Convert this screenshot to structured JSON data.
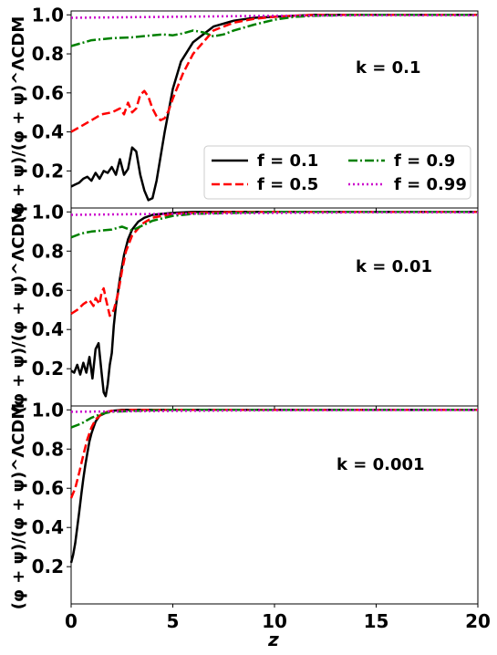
{
  "chart_data": [
    {
      "type": "line",
      "panel": "top",
      "annotation": "k = 0.1",
      "ylabel": "(φ + ψ)/(φ + ψ)^ΛCDM",
      "xlabel": "",
      "xlim": [
        0,
        20
      ],
      "ylim": [
        0.01,
        1.02
      ],
      "yticks": [
        "0.2",
        "0.4",
        "0.6",
        "0.8",
        "1.0"
      ],
      "legend_position": "lower-right",
      "series": [
        {
          "name": "f = 0.1",
          "color": "#000000",
          "style": "solid",
          "x": [
            0,
            0.2,
            0.4,
            0.6,
            0.8,
            1.0,
            1.1,
            1.2,
            1.4,
            1.6,
            1.8,
            2.0,
            2.2,
            2.4,
            2.6,
            2.8,
            3.0,
            3.2,
            3.4,
            3.6,
            3.8,
            4.0,
            4.2,
            4.6,
            5.0,
            5.4,
            6.0,
            7.0,
            8.0,
            9.0,
            10,
            11,
            12,
            14,
            16,
            18,
            20
          ],
          "y": [
            0.12,
            0.13,
            0.14,
            0.16,
            0.17,
            0.15,
            0.17,
            0.19,
            0.16,
            0.2,
            0.19,
            0.22,
            0.18,
            0.26,
            0.18,
            0.21,
            0.32,
            0.3,
            0.18,
            0.1,
            0.05,
            0.06,
            0.15,
            0.4,
            0.62,
            0.76,
            0.86,
            0.94,
            0.97,
            0.985,
            0.99,
            0.995,
            1.0,
            1.0,
            1.0,
            1.0,
            1.0
          ]
        },
        {
          "name": "f = 0.5",
          "color": "#ff0000",
          "style": "dashed",
          "x": [
            0,
            0.5,
            1.0,
            1.5,
            2.0,
            2.4,
            2.6,
            2.8,
            3.0,
            3.2,
            3.4,
            3.6,
            3.8,
            4.0,
            4.2,
            4.4,
            4.6,
            4.8,
            5.0,
            5.5,
            6.0,
            7.0,
            8.0,
            9.0,
            10,
            11,
            12,
            14,
            16,
            18,
            20
          ],
          "y": [
            0.4,
            0.43,
            0.46,
            0.49,
            0.5,
            0.52,
            0.49,
            0.55,
            0.5,
            0.52,
            0.59,
            0.61,
            0.58,
            0.52,
            0.48,
            0.46,
            0.47,
            0.51,
            0.57,
            0.7,
            0.8,
            0.92,
            0.96,
            0.98,
            0.99,
            0.995,
            1.0,
            1.0,
            1.0,
            1.0,
            1.0
          ]
        },
        {
          "name": "f = 0.9",
          "color": "#008000",
          "style": "dashdot",
          "x": [
            0,
            1,
            2,
            3,
            4,
            4.5,
            5,
            5.5,
            6.0,
            6.5,
            7.0,
            7.5,
            8,
            9,
            10,
            11,
            12,
            14,
            16,
            18,
            20
          ],
          "y": [
            0.84,
            0.87,
            0.88,
            0.885,
            0.895,
            0.9,
            0.895,
            0.905,
            0.92,
            0.91,
            0.89,
            0.9,
            0.92,
            0.95,
            0.975,
            0.99,
            0.995,
            1.0,
            1.0,
            1.0,
            1.0
          ]
        },
        {
          "name": "f = 0.99",
          "color": "#cc00cc",
          "style": "dotted",
          "x": [
            0,
            5,
            10,
            15,
            20
          ],
          "y": [
            0.985,
            0.99,
            0.995,
            0.998,
            0.998
          ]
        }
      ]
    },
    {
      "type": "line",
      "panel": "middle",
      "annotation": "k = 0.01",
      "ylabel": "(φ + ψ)/(φ + ψ)^ΛCDM",
      "xlabel": "",
      "xlim": [
        0,
        20
      ],
      "ylim": [
        0.01,
        1.02
      ],
      "yticks": [
        "0.2",
        "0.4",
        "0.6",
        "0.8",
        "1.0"
      ],
      "series": [
        {
          "name": "f = 0.1",
          "color": "#000000",
          "style": "solid",
          "x": [
            0,
            0.15,
            0.3,
            0.45,
            0.6,
            0.75,
            0.9,
            1.05,
            1.2,
            1.35,
            1.5,
            1.6,
            1.7,
            1.8,
            1.9,
            2.0,
            2.1,
            2.2,
            2.4,
            2.6,
            2.8,
            3.0,
            3.3,
            3.6,
            4.0,
            4.5,
            5.0,
            6.0,
            8.0,
            10,
            12,
            14,
            16,
            18,
            20
          ],
          "y": [
            0.19,
            0.18,
            0.22,
            0.17,
            0.23,
            0.18,
            0.26,
            0.15,
            0.3,
            0.33,
            0.18,
            0.08,
            0.06,
            0.12,
            0.22,
            0.28,
            0.42,
            0.52,
            0.66,
            0.78,
            0.86,
            0.91,
            0.95,
            0.97,
            0.985,
            0.99,
            0.995,
            1.0,
            1.0,
            1.0,
            1.0,
            1.0,
            1.0,
            1.0,
            1.0
          ]
        },
        {
          "name": "f = 0.5",
          "color": "#ff0000",
          "style": "dashed",
          "x": [
            0,
            0.3,
            0.6,
            0.9,
            1.1,
            1.2,
            1.4,
            1.5,
            1.6,
            1.7,
            1.9,
            2.1,
            2.3,
            2.5,
            2.7,
            3.0,
            3.5,
            4.0,
            5.0,
            6.0,
            8.0,
            10,
            14,
            20
          ],
          "y": [
            0.48,
            0.5,
            0.53,
            0.55,
            0.52,
            0.56,
            0.53,
            0.59,
            0.61,
            0.56,
            0.47,
            0.5,
            0.58,
            0.7,
            0.8,
            0.88,
            0.94,
            0.97,
            0.99,
            0.995,
            1.0,
            1.0,
            1.0,
            1.0
          ]
        },
        {
          "name": "f = 0.9",
          "color": "#008000",
          "style": "dashdot",
          "x": [
            0,
            0.5,
            1.0,
            1.5,
            2.0,
            2.5,
            3.0,
            3.5,
            4.0,
            5.0,
            6.0,
            8.0,
            10,
            14,
            20
          ],
          "y": [
            0.87,
            0.89,
            0.9,
            0.905,
            0.91,
            0.925,
            0.905,
            0.93,
            0.955,
            0.98,
            0.99,
            0.995,
            1.0,
            1.0,
            1.0
          ]
        },
        {
          "name": "f = 0.99",
          "color": "#cc00cc",
          "style": "dotted",
          "x": [
            0,
            5,
            10,
            15,
            20
          ],
          "y": [
            0.985,
            0.99,
            0.995,
            0.998,
            0.998
          ]
        }
      ]
    },
    {
      "type": "line",
      "panel": "bottom",
      "annotation": "k = 0.001",
      "ylabel": "(φ + ψ)/(φ + ψ)^ΛCDM",
      "xlabel": "z",
      "xlim": [
        0,
        20
      ],
      "ylim": [
        0.01,
        1.02
      ],
      "yticks": [
        "0.2",
        "0.4",
        "0.6",
        "0.8",
        "1.0"
      ],
      "xticks": [
        "0",
        "5",
        "10",
        "15",
        "20"
      ],
      "series": [
        {
          "name": "f = 0.1",
          "color": "#000000",
          "style": "solid",
          "x": [
            0,
            0.1,
            0.2,
            0.3,
            0.4,
            0.5,
            0.6,
            0.7,
            0.8,
            0.9,
            1.0,
            1.1,
            1.2,
            1.4,
            1.6,
            1.8,
            2.0,
            2.5,
            3.0,
            4.0,
            6.0,
            10,
            20
          ],
          "y": [
            0.22,
            0.26,
            0.32,
            0.4,
            0.48,
            0.57,
            0.65,
            0.72,
            0.78,
            0.84,
            0.88,
            0.91,
            0.94,
            0.97,
            0.98,
            0.99,
            0.995,
            1.0,
            1.0,
            1.0,
            1.0,
            1.0,
            1.0
          ]
        },
        {
          "name": "f = 0.5",
          "color": "#ff0000",
          "style": "dashed",
          "x": [
            0,
            0.2,
            0.4,
            0.6,
            0.8,
            1.0,
            1.2,
            1.4,
            1.6,
            2.0,
            3.0,
            5.0,
            20
          ],
          "y": [
            0.55,
            0.6,
            0.68,
            0.77,
            0.85,
            0.91,
            0.95,
            0.97,
            0.985,
            0.995,
            1.0,
            1.0,
            1.0
          ]
        },
        {
          "name": "f = 0.9",
          "color": "#008000",
          "style": "dashdot",
          "x": [
            0,
            0.5,
            1.0,
            1.5,
            2.0,
            3.0,
            5.0,
            20
          ],
          "y": [
            0.91,
            0.93,
            0.96,
            0.98,
            0.99,
            0.995,
            1.0,
            1.0
          ]
        },
        {
          "name": "f = 0.99",
          "color": "#cc00cc",
          "style": "dotted",
          "x": [
            0,
            5,
            10,
            15,
            20
          ],
          "y": [
            0.99,
            0.995,
            0.998,
            0.999,
            0.999
          ]
        }
      ]
    }
  ]
}
